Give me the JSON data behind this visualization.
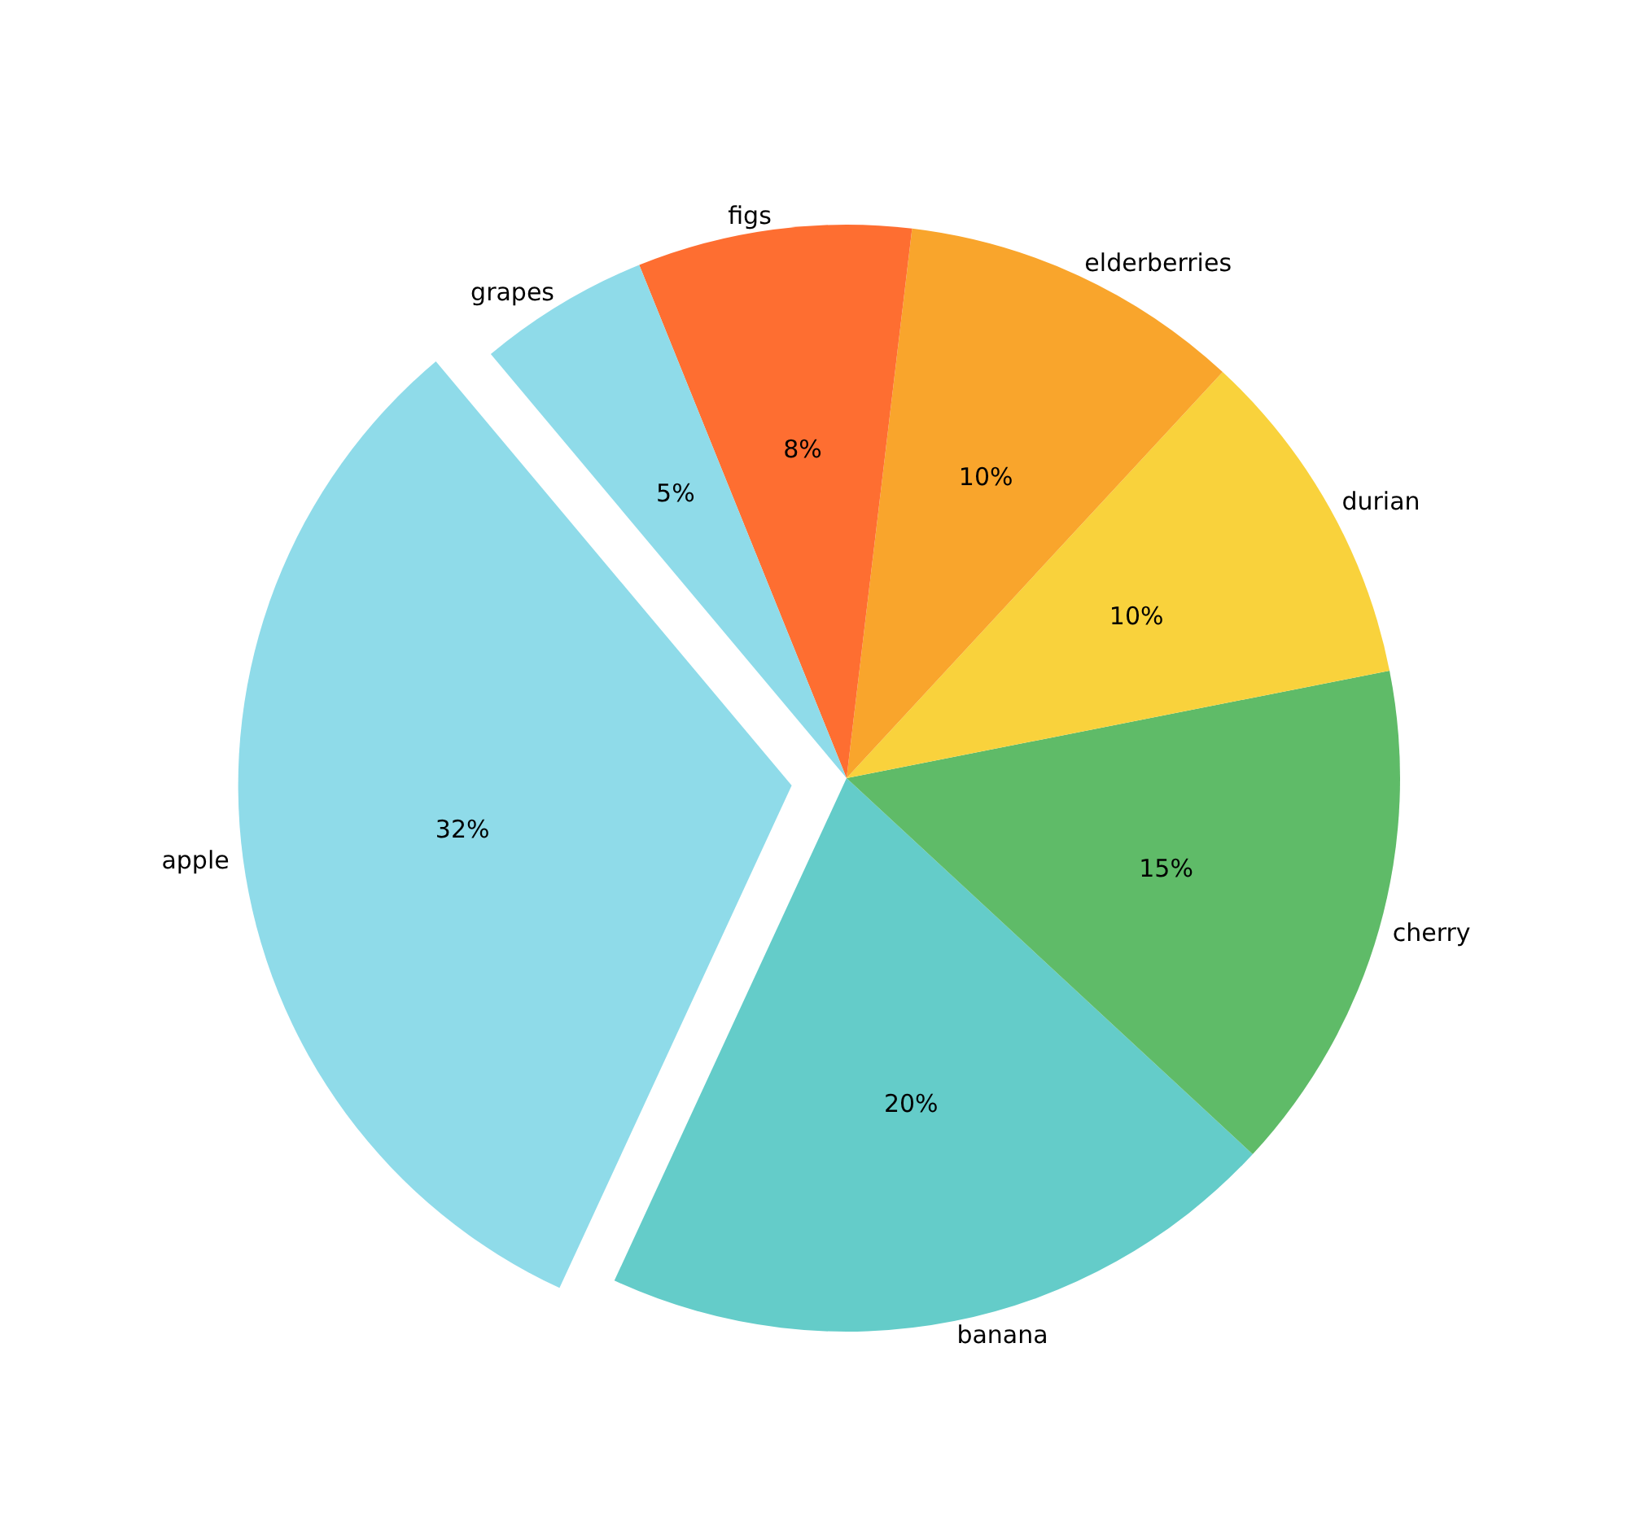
{
  "chart_data": {
    "type": "pie",
    "categories": [
      "apple",
      "banana",
      "cherry",
      "durian",
      "elderberries",
      "figs",
      "grapes"
    ],
    "values": [
      32,
      20,
      15,
      10,
      10,
      8,
      5
    ],
    "value_labels": [
      "32%",
      "20%",
      "15%",
      "10%",
      "10%",
      "8%",
      "5%"
    ],
    "colors": [
      "#8fdbe9",
      "#64ccc9",
      "#5fbb68",
      "#f9d23c",
      "#f9a52c",
      "#fe6e31",
      "#8fdbe9"
    ]
  }
}
